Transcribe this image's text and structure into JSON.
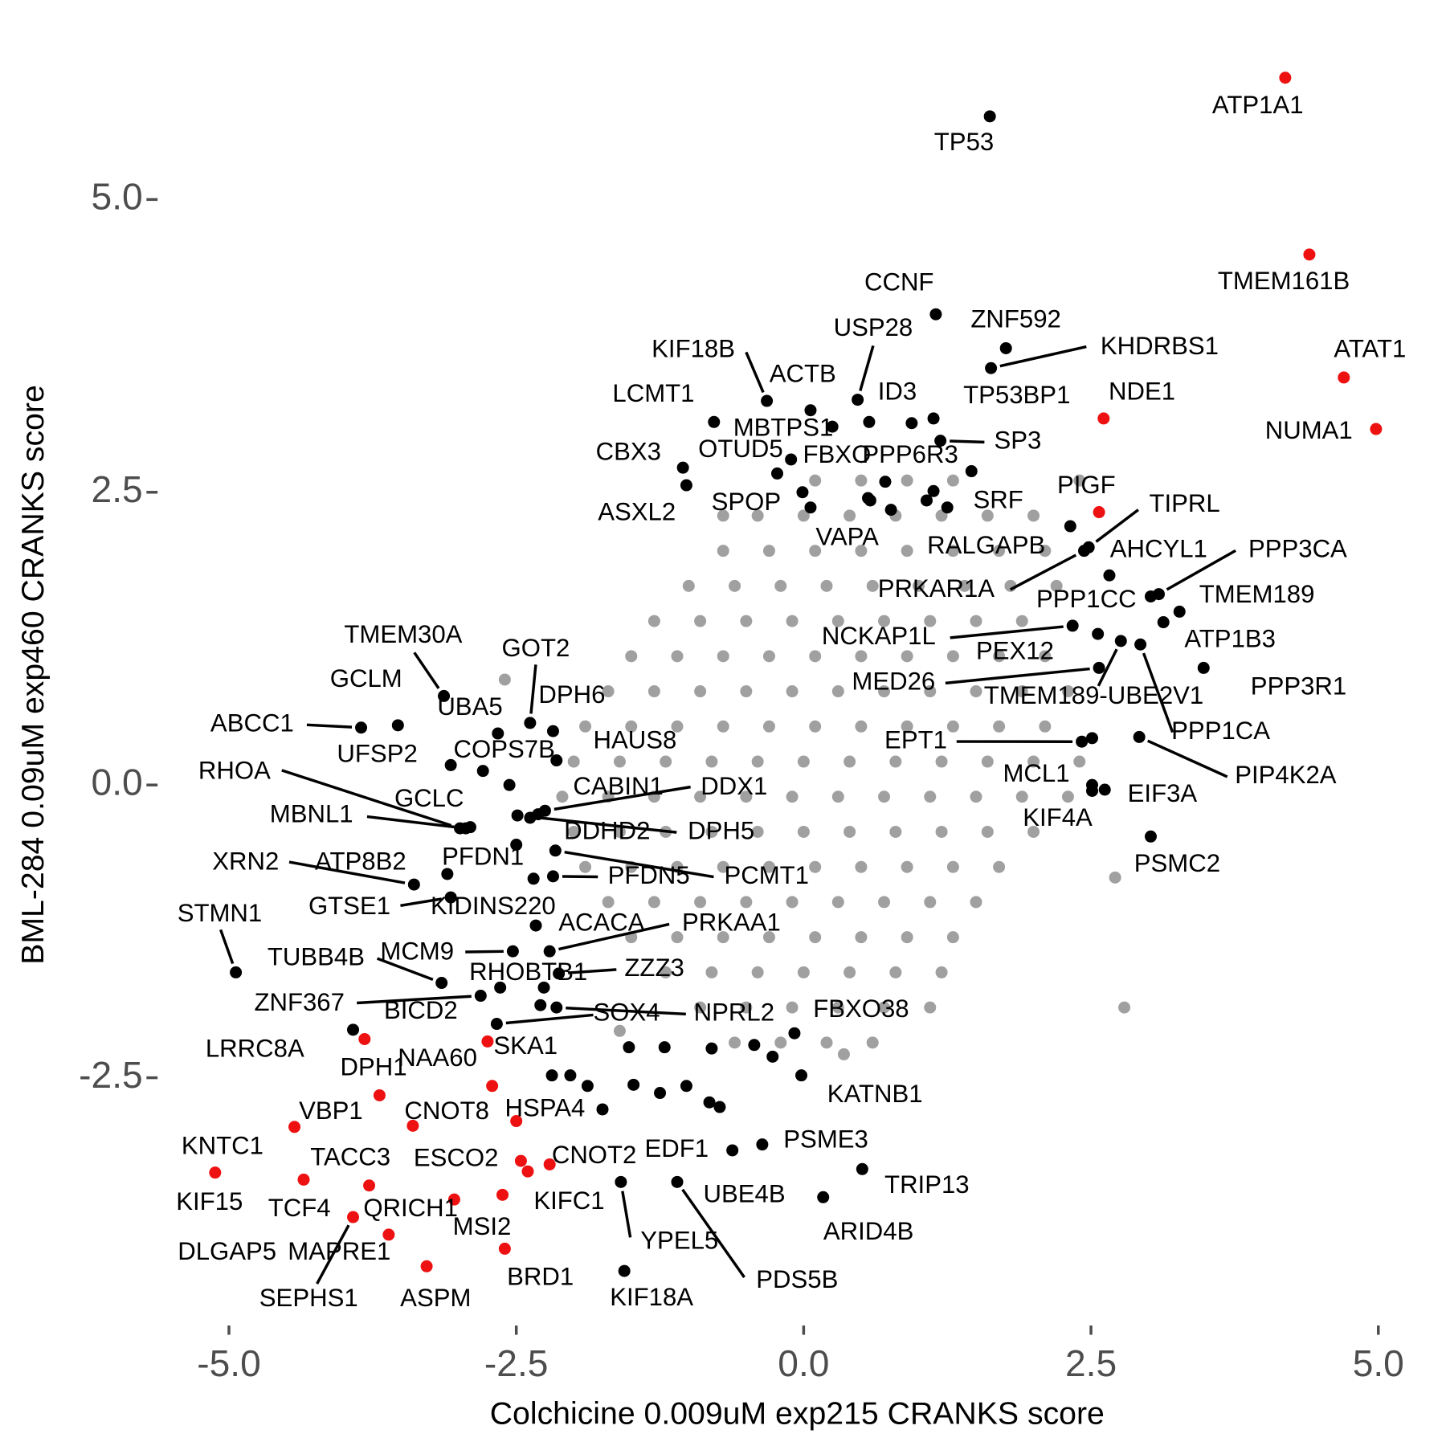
{
  "chart_data": {
    "type": "scatter",
    "x_label": "Colchicine 0.009uM exp215 CRANKS score",
    "y_label": "BML-284 0.09uM exp460 CRANKS score",
    "xlim": [
      -5.5,
      5.25
    ],
    "ylim": [
      -4.6,
      6.3
    ],
    "xticks": [
      {
        "value": -5,
        "label": "-5.0"
      },
      -2.5,
      {
        "value": 0,
        "label": "0.0"
      },
      2.5,
      {
        "value": 5,
        "label": "5.0"
      }
    ],
    "yticks": [
      -2.5,
      {
        "value": 0,
        "label": "0.0"
      },
      2.5,
      {
        "value": 5,
        "label": "5.0"
      }
    ],
    "grid": false,
    "series": [
      {
        "color": "#a0a0a0",
        "x": [
          0.1,
          0.5,
          0.9,
          1.3,
          -0.4,
          0,
          0.4,
          0.8,
          1.2,
          1.6,
          2.0,
          -0.7,
          -0.3,
          0.1,
          0.5,
          0.9,
          1.3,
          1.7,
          2.1,
          -1.0,
          -0.6,
          -0.2,
          0.2,
          0.6,
          1.0,
          1.4,
          1.8,
          2.2,
          -1.3,
          -0.9,
          -0.5,
          -0.1,
          0.3,
          0.7,
          1.1,
          1.5,
          1.9,
          -1.5,
          -1.1,
          -0.7,
          -0.3,
          0.1,
          0.5,
          0.9,
          1.3,
          1.7,
          2.1,
          -1.7,
          -1.3,
          -0.9,
          -0.5,
          -0.1,
          0.3,
          0.7,
          1.1,
          1.5,
          1.9,
          2.3,
          -1.9,
          -1.5,
          -1.1,
          -0.7,
          -0.3,
          0.1,
          0.5,
          0.9,
          1.3,
          1.7,
          2.1,
          -2.0,
          -1.6,
          -1.2,
          -0.8,
          -0.4,
          0,
          0.4,
          0.8,
          1.2,
          1.6,
          2.0,
          2.4,
          -2.1,
          -1.7,
          -1.3,
          -0.9,
          -0.5,
          -0.1,
          0.3,
          0.7,
          1.1,
          1.5,
          1.9,
          2.3,
          -2.0,
          -1.6,
          -1.2,
          -0.8,
          -0.4,
          0,
          0.4,
          0.8,
          1.2,
          1.6,
          2.0,
          -1.9,
          -1.5,
          -1.1,
          -0.7,
          -0.3,
          0.1,
          0.5,
          0.9,
          1.3,
          1.7,
          -1.7,
          -1.3,
          -0.9,
          -0.5,
          -0.1,
          0.3,
          0.7,
          1.1,
          1.5,
          -1.5,
          -1.1,
          -0.7,
          -0.3,
          0.1,
          0.5,
          0.9,
          1.3,
          -1.2,
          -0.8,
          -0.4,
          0,
          0.4,
          0.8,
          1.2,
          -0.9,
          -0.5,
          -0.1,
          0.3,
          0.7,
          1.1,
          -0.6,
          -0.2,
          0.2,
          0.6,
          2.79,
          2.71,
          -2.6,
          -1.6,
          0.35,
          2.4,
          -0.7
        ],
        "y": [
          2.6,
          2.6,
          2.6,
          2.6,
          2.3,
          2.3,
          2.3,
          2.3,
          2.3,
          2.3,
          2.3,
          2.0,
          2.0,
          2.0,
          2.0,
          2.0,
          2.0,
          2.0,
          2.0,
          1.7,
          1.7,
          1.7,
          1.7,
          1.7,
          1.7,
          1.7,
          1.7,
          1.7,
          1.4,
          1.4,
          1.4,
          1.4,
          1.4,
          1.4,
          1.4,
          1.4,
          1.4,
          1.1,
          1.1,
          1.1,
          1.1,
          1.1,
          1.1,
          1.1,
          1.1,
          1.1,
          1.1,
          0.8,
          0.8,
          0.8,
          0.8,
          0.8,
          0.8,
          0.8,
          0.8,
          0.8,
          0.8,
          0.8,
          0.5,
          0.5,
          0.5,
          0.5,
          0.5,
          0.5,
          0.5,
          0.5,
          0.5,
          0.5,
          0.5,
          0.2,
          0.2,
          0.2,
          0.2,
          0.2,
          0.2,
          0.2,
          0.2,
          0.2,
          0.2,
          0.2,
          0.2,
          -0.1,
          -0.1,
          -0.1,
          -0.1,
          -0.1,
          -0.1,
          -0.1,
          -0.1,
          -0.1,
          -0.1,
          -0.1,
          -0.1,
          -0.4,
          -0.4,
          -0.4,
          -0.4,
          -0.4,
          -0.4,
          -0.4,
          -0.4,
          -0.4,
          -0.4,
          -0.4,
          -0.7,
          -0.7,
          -0.7,
          -0.7,
          -0.7,
          -0.7,
          -0.7,
          -0.7,
          -0.7,
          -0.7,
          -1.0,
          -1.0,
          -1.0,
          -1.0,
          -1.0,
          -1.0,
          -1.0,
          -1.0,
          -1.0,
          -1.3,
          -1.3,
          -1.3,
          -1.3,
          -1.3,
          -1.3,
          -1.3,
          -1.3,
          -1.6,
          -1.6,
          -1.6,
          -1.6,
          -1.6,
          -1.6,
          -1.6,
          -1.9,
          -1.9,
          -1.9,
          -1.9,
          -1.9,
          -1.9,
          -2.2,
          -2.2,
          -2.2,
          -2.2,
          -1.9,
          -0.79,
          0.9,
          -2.1,
          -2.3,
          2.6,
          2.3
        ]
      },
      {
        "color": "#000000",
        "x": [
          1.62,
          1.15,
          0.47,
          1.76,
          1.63,
          -0.32,
          0.06,
          0.57,
          -0.78,
          1.13,
          0.25,
          0.94,
          1.19,
          -1.05,
          -0.11,
          0.71,
          1.46,
          -1.02,
          -0.23,
          0.56,
          1.07,
          2.48,
          2.66,
          2.44,
          3.09,
          3.02,
          3.27,
          2.34,
          2.56,
          3.13,
          2.57,
          2.76,
          3.48,
          2.93,
          2.42,
          2.92,
          2.51,
          2.62,
          2.51,
          3.02,
          -3.13,
          -3.53,
          -3.85,
          -2.66,
          -2.38,
          -2.18,
          -3.07,
          -2.79,
          -2.15,
          -2.99,
          -2.9,
          -2.94,
          -2.31,
          -2.25,
          -2.38,
          -2.49,
          -2.5,
          -2.16,
          -2.18,
          -3.39,
          -3.1,
          -3.07,
          -2.35,
          -4.94,
          -2.33,
          -2.21,
          -3.15,
          -2.53,
          -2.26,
          -2.13,
          -2.81,
          -2.64,
          -2.67,
          -2.15,
          -3.92,
          -0.08,
          -0.02,
          -0.82,
          -0.36,
          0.51,
          -0.62,
          0.17,
          -1.75,
          -1.59,
          -1.56,
          -1.1,
          -0.01,
          0.06,
          0.58,
          0.76,
          1.25,
          1.13,
          2.32,
          -2.19,
          -2.03,
          -1.88,
          -1.52,
          -1.48,
          -1.21,
          -1.25,
          -1.02,
          -0.8,
          -0.73,
          -0.43,
          -0.27,
          -2.56,
          -2.29,
          2.51
        ],
        "y": [
          5.71,
          4.02,
          3.29,
          3.73,
          3.56,
          3.28,
          3.2,
          3.1,
          3.1,
          3.13,
          3.06,
          3.09,
          2.94,
          2.71,
          2.78,
          2.59,
          2.68,
          2.56,
          2.66,
          2.45,
          2.43,
          2.03,
          1.79,
          2.0,
          1.63,
          1.61,
          1.48,
          1.36,
          1.29,
          1.39,
          1.0,
          1.23,
          1.0,
          1.2,
          0.37,
          0.41,
          -0.05,
          -0.04,
          0.4,
          -0.44,
          0.76,
          0.51,
          0.49,
          0.44,
          0.53,
          0.46,
          0.17,
          0.12,
          0.21,
          -0.37,
          -0.36,
          -0.37,
          -0.25,
          -0.22,
          -0.28,
          -0.26,
          -0.51,
          -0.56,
          -0.78,
          -0.85,
          -0.76,
          -0.96,
          -0.8,
          -1.6,
          -1.2,
          -1.42,
          -1.69,
          -1.42,
          -1.73,
          -1.61,
          -1.8,
          -1.73,
          -2.04,
          -1.9,
          -2.09,
          -2.12,
          -2.48,
          -2.71,
          -3.07,
          -3.28,
          -3.12,
          -3.52,
          -2.77,
          -3.39,
          -4.15,
          -3.39,
          2.5,
          2.37,
          2.43,
          2.35,
          2.37,
          2.51,
          2.21,
          -2.48,
          -2.48,
          -2.57,
          -2.24,
          -2.56,
          -2.24,
          -2.63,
          -2.57,
          -2.25,
          -2.75,
          -2.22,
          -2.32,
          0.0,
          -1.88,
          0.0
        ],
        "labels": [
          "TP53",
          "CCNF",
          "USP28",
          "ZNF592",
          "KHDRBS1",
          "KIF18B",
          "ACTB",
          "ID3",
          "LCMT1",
          "TP53BP1",
          "MBTPS1",
          "FBXO",
          "SP3",
          "CBX3",
          "OTUD5",
          "PPP6R3",
          "SRF",
          "ASXL2",
          "SPOP",
          "VAPA",
          "RALGAPB",
          "TIPRL",
          "AHCYL1",
          "PRKAR1A",
          "PPP3CA",
          "PPP1CC",
          "TMEM189",
          "NCKAP1L",
          "PEX12",
          "ATP1B3",
          "MED26",
          "TMEM189-UBE2V1",
          "PPP3R1",
          "PPP1CA",
          "EPT1",
          "PIP4K2A",
          "MCL1",
          "EIF3A",
          "KIF4A",
          "PSMC2",
          "TMEM30A",
          "GCLM",
          "ABCC1",
          "UBA5",
          "GOT2",
          "DPH6",
          "UFSP2",
          "COPS7B",
          "HAUS8",
          "RHOA",
          "GCLC",
          "MBNL1",
          "CABIN1",
          "DDX1",
          "DDHD2",
          "DPH5",
          "PFDN1",
          "PCMT1",
          "PFDN5",
          "XRN2",
          "ATP8B2",
          "GTSE1",
          "KIDINS220",
          "STMN1",
          "ACACA",
          "PRKAA1",
          "TUBB4B",
          "MCM9",
          "RHOBTB1",
          "ZZZ3",
          "ZNF367",
          "BICD2",
          "SOX4",
          "NPRL2",
          "LRRC8A",
          "FBXO38",
          "KATNB1",
          "EDF1",
          "PSME3",
          "TRIP13",
          "UBE4B",
          "ARID4B",
          "KIFC1",
          "YPEL5",
          "KIF18A",
          "PDS5B",
          null,
          null,
          null,
          null,
          null,
          null,
          null,
          null,
          null,
          null,
          null,
          null,
          null,
          null,
          null,
          null,
          null,
          null,
          null,
          null,
          null,
          null
        ]
      },
      {
        "color": "#ee1111",
        "x": [
          4.19,
          4.4,
          4.7,
          4.98,
          2.61,
          2.57,
          -3.82,
          -2.75,
          -2.71,
          -3.69,
          -3.4,
          -2.5,
          -4.43,
          -5.12,
          -4.35,
          -2.46,
          -2.21,
          -3.78,
          -3.04,
          -2.4,
          -3.61,
          -3.92,
          -2.62,
          -3.28,
          -2.6
        ],
        "y": [
          6.04,
          4.53,
          3.48,
          3.04,
          3.13,
          2.33,
          -2.17,
          -2.19,
          -2.57,
          -2.65,
          -2.91,
          -2.87,
          -2.92,
          -3.31,
          -3.37,
          -3.21,
          -3.24,
          -3.42,
          -3.54,
          -3.3,
          -3.84,
          -3.69,
          -3.5,
          -4.11,
          -3.96
        ],
        "labels": [
          "ATP1A1",
          "TMEM161B",
          "ATAT1",
          "NUMA1",
          "NDE1",
          "PIGF",
          "DPH1",
          "SKA1",
          "NAA60",
          "VBP1",
          "CNOT8",
          "HSPA4",
          "KNTC1",
          "KIF15",
          "TACC3",
          "ESCO2",
          "CNOT2",
          "TCF4",
          "QRICH1",
          "DLGAP5",
          "MAPRE1",
          "SEPHS1",
          "MSI2",
          "ASPM",
          "BRD1"
        ]
      }
    ]
  }
}
